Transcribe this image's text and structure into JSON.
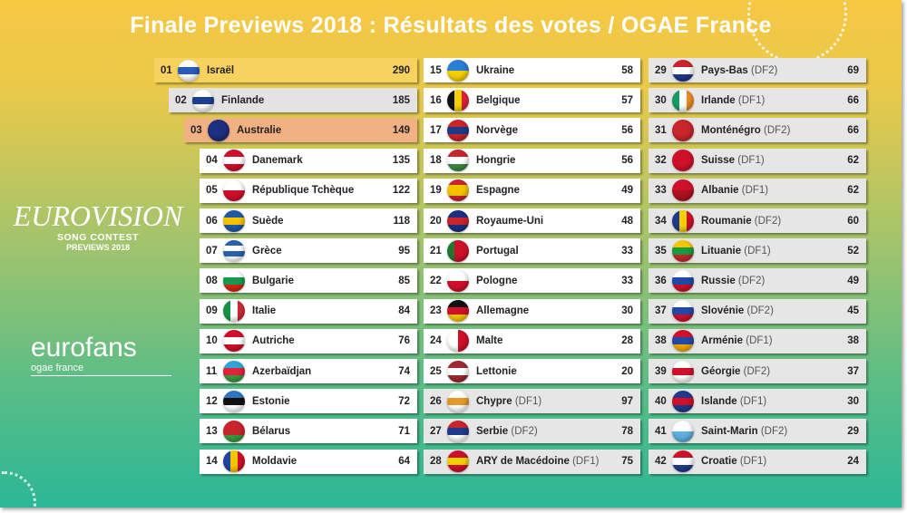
{
  "title": "Finale Previews 2018 : Résultats des votes / OGAE France",
  "logos": {
    "eurovision": "EUROVISION",
    "song_contest": "SONG CONTEST",
    "previews": "PREVIEWS 2018",
    "eurofans": "eurofans",
    "ogae": "ogae france"
  },
  "highlight_colors": {
    "first": "#f7d25e",
    "second": "#e3e3e3",
    "third": "#f2b183"
  },
  "results": [
    {
      "rank": "01",
      "country": "Israël",
      "tag": "",
      "points": 290,
      "flag": [
        "h",
        "#fff",
        "#2a5db8",
        "#fff"
      ]
    },
    {
      "rank": "02",
      "country": "Finlande",
      "tag": "",
      "points": 185,
      "flag": [
        "h",
        "#fff",
        "#1a3f8f",
        "#fff"
      ]
    },
    {
      "rank": "03",
      "country": "Australie",
      "tag": "",
      "points": 149,
      "flag": [
        "h",
        "#1d2f80",
        "#1d2f80"
      ]
    },
    {
      "rank": "04",
      "country": "Danemark",
      "tag": "",
      "points": 135,
      "flag": [
        "h",
        "#d0102a",
        "#fff",
        "#d0102a"
      ]
    },
    {
      "rank": "05",
      "country": "République Tchèque",
      "tag": "",
      "points": 122,
      "flag": [
        "h",
        "#fff",
        "#d0102a"
      ]
    },
    {
      "rank": "06",
      "country": "Suède",
      "tag": "",
      "points": 118,
      "flag": [
        "h",
        "#1f5aa6",
        "#f4c400",
        "#1f5aa6"
      ]
    },
    {
      "rank": "07",
      "country": "Grèce",
      "tag": "",
      "points": 95,
      "flag": [
        "h",
        "#2a62b0",
        "#fff",
        "#2a62b0",
        "#fff"
      ]
    },
    {
      "rank": "08",
      "country": "Bulgarie",
      "tag": "",
      "points": 85,
      "flag": [
        "h",
        "#fff",
        "#159a50",
        "#d62612"
      ]
    },
    {
      "rank": "09",
      "country": "Italie",
      "tag": "",
      "points": 84,
      "flag": [
        "v",
        "#169244",
        "#fff",
        "#ce2b37"
      ]
    },
    {
      "rank": "10",
      "country": "Autriche",
      "tag": "",
      "points": 76,
      "flag": [
        "h",
        "#d0102a",
        "#fff",
        "#d0102a"
      ]
    },
    {
      "rank": "11",
      "country": "Azerbaïdjan",
      "tag": "",
      "points": 74,
      "flag": [
        "h",
        "#2fa5d8",
        "#e0233a",
        "#3a9a40"
      ]
    },
    {
      "rank": "12",
      "country": "Estonie",
      "tag": "",
      "points": 72,
      "flag": [
        "h",
        "#2f74c0",
        "#111",
        "#fff"
      ]
    },
    {
      "rank": "13",
      "country": "Bélarus",
      "tag": "",
      "points": 71,
      "flag": [
        "h",
        "#c8252c",
        "#c8252c",
        "#3a9a40"
      ]
    },
    {
      "rank": "14",
      "country": "Moldavie",
      "tag": "",
      "points": 64,
      "flag": [
        "v",
        "#1e46a0",
        "#f4c400",
        "#d0102a"
      ]
    },
    {
      "rank": "15",
      "country": "Ukraine",
      "tag": "",
      "points": 58,
      "flag": [
        "h",
        "#2a7fd4",
        "#f4d000"
      ]
    },
    {
      "rank": "16",
      "country": "Belgique",
      "tag": "",
      "points": 57,
      "flag": [
        "v",
        "#111",
        "#f4d000",
        "#e0233a"
      ]
    },
    {
      "rank": "17",
      "country": "Norvège",
      "tag": "",
      "points": 56,
      "flag": [
        "h",
        "#c8252c",
        "#1f3a8a",
        "#c8252c"
      ]
    },
    {
      "rank": "18",
      "country": "Hongrie",
      "tag": "",
      "points": 56,
      "flag": [
        "h",
        "#c8252c",
        "#fff",
        "#3a8a40"
      ]
    },
    {
      "rank": "19",
      "country": "Espagne",
      "tag": "",
      "points": 49,
      "flag": [
        "h",
        "#c8252c",
        "#f4c400",
        "#f4c400",
        "#c8252c"
      ]
    },
    {
      "rank": "20",
      "country": "Royaume-Uni",
      "tag": "",
      "points": 48,
      "flag": [
        "h",
        "#1d2f80",
        "#c8252c",
        "#1d2f80"
      ]
    },
    {
      "rank": "21",
      "country": "Portugal",
      "tag": "",
      "points": 33,
      "flag": [
        "v",
        "#1f7a30",
        "#d0102a",
        "#d0102a"
      ]
    },
    {
      "rank": "22",
      "country": "Pologne",
      "tag": "",
      "points": 33,
      "flag": [
        "h",
        "#fff",
        "#d0102a"
      ]
    },
    {
      "rank": "23",
      "country": "Allemagne",
      "tag": "",
      "points": 30,
      "flag": [
        "h",
        "#111",
        "#d0102a",
        "#f4c400"
      ]
    },
    {
      "rank": "24",
      "country": "Malte",
      "tag": "",
      "points": 28,
      "flag": [
        "v",
        "#fff",
        "#d0102a"
      ]
    },
    {
      "rank": "25",
      "country": "Lettonie",
      "tag": "",
      "points": 20,
      "flag": [
        "h",
        "#9e2a32",
        "#fff",
        "#9e2a32"
      ]
    },
    {
      "rank": "26",
      "country": "Chypre",
      "tag": "(DF1)",
      "points": 97,
      "flag": [
        "h",
        "#fff",
        "#e39a2a",
        "#fff"
      ]
    },
    {
      "rank": "27",
      "country": "Serbie",
      "tag": "(DF2)",
      "points": 78,
      "flag": [
        "h",
        "#c8252c",
        "#1f3a8a",
        "#fff"
      ]
    },
    {
      "rank": "28",
      "country": "ARY de Macédoine",
      "tag": "(DF1)",
      "points": 75,
      "flag": [
        "h",
        "#d0102a",
        "#f4d000",
        "#d0102a"
      ]
    },
    {
      "rank": "29",
      "country": "Pays-Bas",
      "tag": "(DF2)",
      "points": 69,
      "flag": [
        "h",
        "#c8252c",
        "#fff",
        "#1f3a8a"
      ]
    },
    {
      "rank": "30",
      "country": "Irlande",
      "tag": "(DF1)",
      "points": 66,
      "flag": [
        "v",
        "#169b62",
        "#fff",
        "#f08a24"
      ]
    },
    {
      "rank": "31",
      "country": "Monténégro",
      "tag": "(DF2)",
      "points": 66,
      "flag": [
        "h",
        "#c8252c",
        "#c8252c"
      ]
    },
    {
      "rank": "32",
      "country": "Suisse",
      "tag": "(DF1)",
      "points": 62,
      "flag": [
        "h",
        "#d0102a",
        "#d0102a"
      ]
    },
    {
      "rank": "33",
      "country": "Albanie",
      "tag": "(DF1)",
      "points": 62,
      "flag": [
        "h",
        "#d0102a",
        "#b01020"
      ]
    },
    {
      "rank": "34",
      "country": "Roumanie",
      "tag": "(DF2)",
      "points": 60,
      "flag": [
        "v",
        "#1f3a8a",
        "#f4d000",
        "#d0102a"
      ]
    },
    {
      "rank": "35",
      "country": "Lituanie",
      "tag": "(DF1)",
      "points": 52,
      "flag": [
        "h",
        "#f4c400",
        "#169b40",
        "#c8252c"
      ]
    },
    {
      "rank": "36",
      "country": "Russie",
      "tag": "(DF2)",
      "points": 49,
      "flag": [
        "h",
        "#fff",
        "#1f4aa8",
        "#d0102a"
      ]
    },
    {
      "rank": "37",
      "country": "Slovénie",
      "tag": "(DF2)",
      "points": 45,
      "flag": [
        "h",
        "#fff",
        "#1f4aa8",
        "#d0102a"
      ]
    },
    {
      "rank": "38",
      "country": "Arménie",
      "tag": "(DF1)",
      "points": 38,
      "flag": [
        "h",
        "#d0102a",
        "#1f4aa8",
        "#f2a800"
      ]
    },
    {
      "rank": "39",
      "country": "Géorgie",
      "tag": "(DF2)",
      "points": 37,
      "flag": [
        "h",
        "#fff",
        "#d0102a",
        "#fff"
      ]
    },
    {
      "rank": "40",
      "country": "Islande",
      "tag": "(DF1)",
      "points": 30,
      "flag": [
        "h",
        "#1f3a8a",
        "#d0102a",
        "#1f3a8a"
      ]
    },
    {
      "rank": "41",
      "country": "Saint-Marin",
      "tag": "(DF2)",
      "points": 29,
      "flag": [
        "h",
        "#fff",
        "#5fb0e0"
      ]
    },
    {
      "rank": "42",
      "country": "Croatie",
      "tag": "(DF1)",
      "points": 24,
      "flag": [
        "h",
        "#d0102a",
        "#fff",
        "#1f3a8a"
      ]
    }
  ]
}
